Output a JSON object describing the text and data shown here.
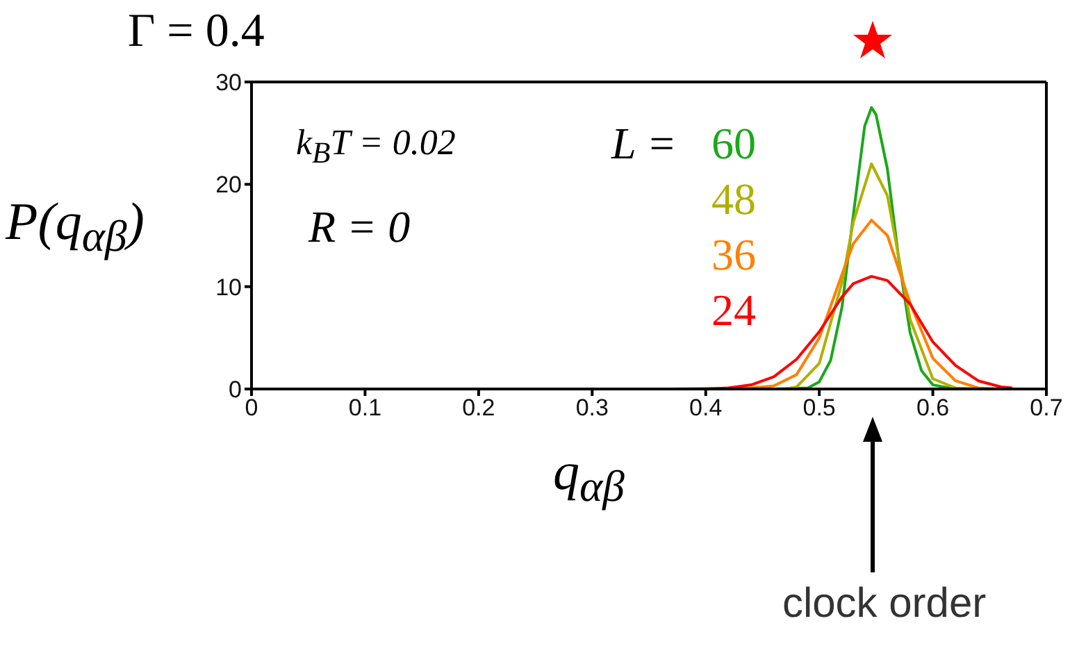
{
  "chart_data": {
    "type": "line",
    "title": "Γ = 0.4",
    "xlabel": "q$_{αβ}$",
    "ylabel": "P(q$_{αβ}$)",
    "annotations": [
      "k$_{B}$T = 0.02",
      "R = 0",
      "L =",
      "clock order"
    ],
    "xlim": [
      0,
      0.7
    ],
    "xticks": [
      0,
      0.1,
      0.2,
      0.3,
      0.4,
      0.5,
      0.6,
      0.7
    ],
    "ylim": [
      0,
      30
    ],
    "yticks": [
      0,
      10,
      20,
      30
    ],
    "legend": false,
    "marker": "none",
    "line_style": "solid",
    "series": [
      {
        "name": "60",
        "color": "#1aa81a",
        "x": [
          0.46,
          0.49,
          0.5,
          0.51,
          0.52,
          0.53,
          0.54,
          0.546,
          0.55,
          0.56,
          0.57,
          0.58,
          0.59,
          0.6,
          0.62,
          0.65
        ],
        "values": [
          0,
          0.1,
          0.7,
          2.8,
          8,
          17,
          25.7,
          27.5,
          26.8,
          21.5,
          12.7,
          5.5,
          1.8,
          0.4,
          0,
          0
        ]
      },
      {
        "name": "48",
        "color": "#b0b000",
        "x": [
          0.44,
          0.47,
          0.48,
          0.5,
          0.52,
          0.53,
          0.546,
          0.56,
          0.58,
          0.6,
          0.62,
          0.64
        ],
        "values": [
          0,
          0,
          0.2,
          2.5,
          10.4,
          16.3,
          22,
          18.9,
          6.8,
          1,
          0.1,
          0
        ]
      },
      {
        "name": "36",
        "color": "#ff8000",
        "x": [
          0.37,
          0.44,
          0.46,
          0.48,
          0.5,
          0.52,
          0.53,
          0.546,
          0.56,
          0.58,
          0.6,
          0.62,
          0.64,
          0.66
        ],
        "values": [
          0,
          0.1,
          0.3,
          1.4,
          5,
          11.2,
          14.2,
          16.5,
          15,
          8.4,
          3,
          0.8,
          0.1,
          0
        ]
      },
      {
        "name": "24",
        "color": "#ff0000",
        "x": [
          0.2,
          0.3,
          0.4,
          0.42,
          0.44,
          0.46,
          0.48,
          0.5,
          0.52,
          0.53,
          0.546,
          0.56,
          0.58,
          0.6,
          0.62,
          0.64,
          0.66,
          0.67
        ],
        "values": [
          0,
          0,
          0,
          0.1,
          0.4,
          1.2,
          2.9,
          5.6,
          9,
          10.3,
          11,
          10.6,
          8.3,
          4.6,
          2.3,
          0.8,
          0.2,
          0.1
        ]
      }
    ]
  }
}
